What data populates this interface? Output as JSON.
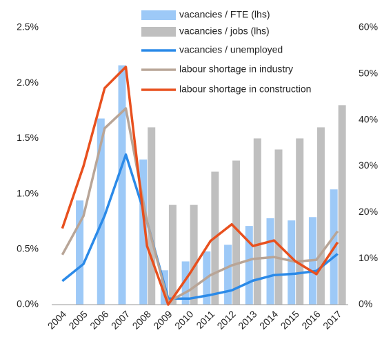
{
  "chart_data": {
    "type": "bar_line",
    "categories": [
      "2004",
      "2005",
      "2006",
      "2007",
      "2008",
      "2009",
      "2010",
      "2011",
      "2012",
      "2013",
      "2014",
      "2015",
      "2016",
      "2017"
    ],
    "series": [
      {
        "name": "vacancies / FTE (lhs)",
        "type": "bar",
        "color": "#9dc9f7",
        "values": [
          null,
          0.94,
          1.68,
          2.16,
          1.31,
          0.31,
          0.39,
          0.48,
          0.54,
          0.71,
          0.78,
          0.76,
          0.79,
          1.04
        ]
      },
      {
        "name": "vacancies / jobs (lhs)",
        "type": "bar",
        "color": "#bfbfbf",
        "values": [
          null,
          null,
          null,
          null,
          1.6,
          0.9,
          0.9,
          1.2,
          1.3,
          1.5,
          1.4,
          1.5,
          1.6,
          1.8
        ]
      },
      {
        "name": "vacancies / unemployed",
        "type": "line",
        "axis": "y2",
        "color": "#2b8ae8",
        "values": [
          5.1,
          8.8,
          19.3,
          32.5,
          18,
          1.3,
          1.3,
          2.1,
          3.1,
          5.2,
          6.4,
          6.7,
          7.3,
          11
        ]
      },
      {
        "name": "labour shortage in industry",
        "type": "line",
        "axis": "y2",
        "color": "#b8a597",
        "values": [
          10.8,
          19.2,
          38.2,
          42.5,
          18,
          0.6,
          3.1,
          6.4,
          8.5,
          9.9,
          10.3,
          9.3,
          9.7,
          15.9
        ]
      },
      {
        "name": "labour shortage in construction",
        "type": "line",
        "axis": "y2",
        "color": "#e8501e",
        "values": [
          16.5,
          30,
          46.9,
          51.5,
          12.7,
          0,
          6.6,
          13.8,
          17.4,
          12.7,
          13.9,
          9.4,
          6.6,
          13.5
        ]
      }
    ],
    "ylim": [
      0,
      2.5
    ],
    "yticks": [
      {
        "value": 0,
        "label": "0.0%"
      },
      {
        "value": 0.5,
        "label": "0.5%"
      },
      {
        "value": 1,
        "label": "1.0%"
      },
      {
        "value": 1.5,
        "label": "1.5%"
      },
      {
        "value": 2,
        "label": "2.0%"
      },
      {
        "value": 2.5,
        "label": "2.5%"
      }
    ],
    "y2lim": [
      0,
      60
    ],
    "y2ticks": [
      {
        "value": 0,
        "label": "0%"
      },
      {
        "value": 10,
        "label": "10%"
      },
      {
        "value": 20,
        "label": "20%"
      },
      {
        "value": 30,
        "label": "30%"
      },
      {
        "value": 40,
        "label": "40%"
      },
      {
        "value": 50,
        "label": "50%"
      },
      {
        "value": 60,
        "label": "60%"
      }
    ],
    "grid": false
  }
}
